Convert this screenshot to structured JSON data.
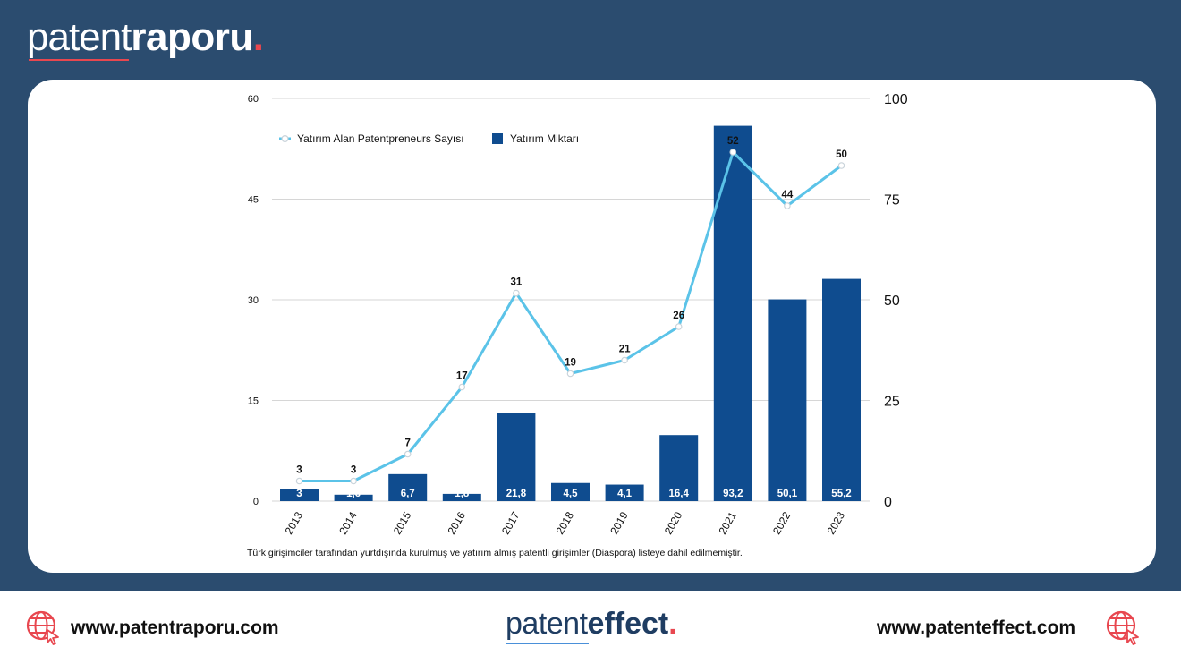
{
  "header": {
    "brand_light": "patent",
    "brand_bold": "raporu",
    "brand_dot": "."
  },
  "chart_data": {
    "type": "bar",
    "categories": [
      "2013",
      "2014",
      "2015",
      "2016",
      "2017",
      "2018",
      "2019",
      "2020",
      "2021",
      "2022",
      "2023"
    ],
    "series": [
      {
        "name": "Yatırım Miktarı",
        "type": "bar",
        "axis": "right",
        "color": "#0f4c8f",
        "values": [
          3,
          1.6,
          6.7,
          1.8,
          21.8,
          4.5,
          4.1,
          16.4,
          93.2,
          50.1,
          55.2
        ],
        "value_labels": [
          "3",
          "1,6",
          "6,7",
          "1,8",
          "21,8",
          "4,5",
          "4,1",
          "16,4",
          "93,2",
          "50,1",
          "55,2"
        ]
      },
      {
        "name": "Yatırım Alan Patentpreneurs Sayısı",
        "type": "line",
        "axis": "left",
        "color": "#5bc3e8",
        "values": [
          3,
          3,
          7,
          17,
          31,
          19,
          21,
          26,
          52,
          44,
          50
        ],
        "value_labels": [
          "3",
          "3",
          "7",
          "17",
          "31",
          "19",
          "21",
          "26",
          "52",
          "44",
          "50"
        ]
      }
    ],
    "left_axis": {
      "ticks": [
        "0",
        "15",
        "30",
        "45",
        "60"
      ],
      "ylim": [
        0,
        60
      ]
    },
    "right_axis": {
      "ticks": [
        "0",
        "25",
        "50",
        "75",
        "100"
      ],
      "ylim": [
        0,
        100
      ]
    },
    "grid": true,
    "legend": "top-left",
    "note": "Türk girişimciler tarafından yurtdışında kurulmuş ve yatırım almış patentli girişimler (Diaspora) listeye dahil edilmemiştir."
  },
  "footer": {
    "left_url": "www.patentraporu.com",
    "right_url": "www.patenteffect.com",
    "brand_light": "patent",
    "brand_bold": "effect",
    "brand_dot": ".",
    "left_icon": "globe-cursor-icon",
    "right_icon": "globe-cursor-icon",
    "accent": "#e8474f"
  }
}
